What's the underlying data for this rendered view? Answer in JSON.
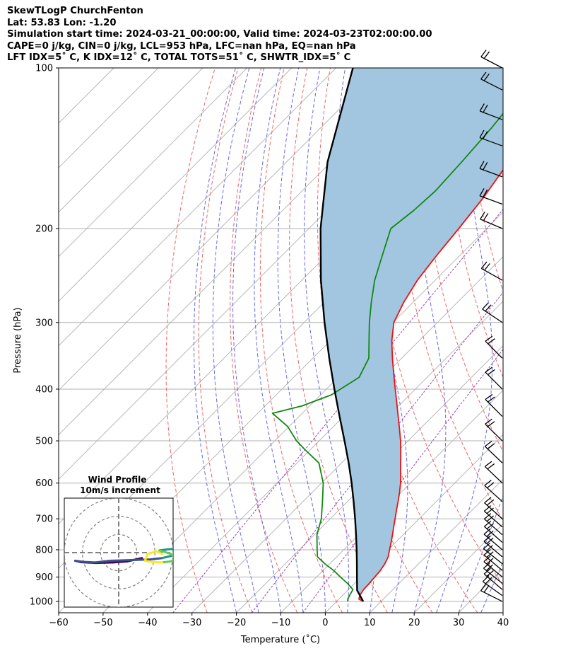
{
  "chart_data": {
    "type": "line",
    "title_lines": [
      "SkewTLogP ChurchFenton",
      "Lat: 53.83   Lon: -1.20",
      "Simulation start time: 2024-03-21_00:00:00, Valid time: 2024-03-23T02:00:00.00",
      "CAPE=0 j/kg, CIN=0 j/kg, LCL=953 hPa, LFC=nan hPa, EQ=nan hPa",
      "LFT IDX=5˚ C, K IDX=12˚ C, TOTAL TOTS=51˚ C, SHWTR_IDX=5˚ C"
    ],
    "xlabel": "Temperature (˚C)",
    "ylabel": "Pressure (hPa)",
    "xlim": [
      -60,
      40
    ],
    "ylim": [
      1050,
      100
    ],
    "yscale": "log",
    "skew": 45,
    "x_ticks": [
      "−60",
      "−50",
      "−40",
      "−30",
      "−20",
      "−10",
      "0",
      "10",
      "20",
      "30",
      "40"
    ],
    "x_tick_values": [
      -60,
      -50,
      -40,
      -30,
      -20,
      -10,
      0,
      10,
      20,
      30,
      40
    ],
    "y_ticks": [
      "1000",
      "900",
      "800",
      "700",
      "600",
      "500",
      "400",
      "300",
      "200",
      "100"
    ],
    "y_tick_values": [
      1000,
      900,
      800,
      700,
      600,
      500,
      400,
      300,
      200,
      100
    ],
    "grid": true,
    "series": [
      {
        "role": "temperature",
        "color": "#ee1111",
        "points": [
          [
            1000,
            6.0
          ],
          [
            990,
            4.5
          ],
          [
            975,
            3.9
          ],
          [
            950,
            3.4
          ],
          [
            925,
            3.3
          ],
          [
            900,
            3.1
          ],
          [
            875,
            2.9
          ],
          [
            850,
            2.4
          ],
          [
            825,
            1.6
          ],
          [
            800,
            0.3
          ],
          [
            775,
            -1.0
          ],
          [
            750,
            -2.4
          ],
          [
            725,
            -3.9
          ],
          [
            700,
            -5.4
          ],
          [
            675,
            -7.0
          ],
          [
            650,
            -8.6
          ],
          [
            625,
            -10.3
          ],
          [
            600,
            -12.2
          ],
          [
            575,
            -14.4
          ],
          [
            550,
            -16.7
          ],
          [
            525,
            -19.1
          ],
          [
            500,
            -21.7
          ],
          [
            475,
            -24.6
          ],
          [
            450,
            -27.7
          ],
          [
            425,
            -31.0
          ],
          [
            400,
            -34.5
          ],
          [
            375,
            -38.2
          ],
          [
            350,
            -42.1
          ],
          [
            325,
            -46.1
          ],
          [
            300,
            -49.8
          ],
          [
            275,
            -52.1
          ],
          [
            250,
            -54.0
          ],
          [
            225,
            -55.2
          ],
          [
            200,
            -56.3
          ],
          [
            175,
            -57.7
          ],
          [
            150,
            -60.0
          ],
          [
            125,
            -63.7
          ],
          [
            110,
            -65.6
          ],
          [
            100,
            -67.0
          ]
        ]
      },
      {
        "role": "dewpoint",
        "color": "#118811",
        "points": [
          [
            1000,
            2.5
          ],
          [
            990,
            2.0
          ],
          [
            975,
            1.6
          ],
          [
            950,
            1.0
          ],
          [
            925,
            -1.6
          ],
          [
            900,
            -4.6
          ],
          [
            875,
            -7.6
          ],
          [
            850,
            -11.1
          ],
          [
            825,
            -14.3
          ],
          [
            800,
            -16.0
          ],
          [
            750,
            -19.4
          ],
          [
            700,
            -22.0
          ],
          [
            650,
            -25.6
          ],
          [
            600,
            -29.6
          ],
          [
            550,
            -35.1
          ],
          [
            520,
            -41.1
          ],
          [
            500,
            -45.1
          ],
          [
            470,
            -50.3
          ],
          [
            444,
            -56.7
          ],
          [
            430,
            -51.7
          ],
          [
            410,
            -47.6
          ],
          [
            380,
            -45.3
          ],
          [
            350,
            -47.4
          ],
          [
            320,
            -52.0
          ],
          [
            300,
            -55.3
          ],
          [
            275,
            -59.4
          ],
          [
            250,
            -63.6
          ],
          [
            225,
            -67.4
          ],
          [
            200,
            -71.6
          ],
          [
            185,
            -70.5
          ],
          [
            170,
            -70.0
          ],
          [
            150,
            -70.6
          ],
          [
            130,
            -71.5
          ],
          [
            115,
            -72.7
          ],
          [
            100,
            -74.0
          ]
        ]
      },
      {
        "role": "parcel",
        "color": "#000000",
        "points": [
          [
            1000,
            6.0
          ],
          [
            953,
            2.1
          ],
          [
            900,
            -0.9
          ],
          [
            850,
            -3.9
          ],
          [
            800,
            -7.1
          ],
          [
            750,
            -10.6
          ],
          [
            700,
            -14.4
          ],
          [
            650,
            -18.6
          ],
          [
            600,
            -23.2
          ],
          [
            550,
            -28.4
          ],
          [
            500,
            -34.3
          ],
          [
            450,
            -40.9
          ],
          [
            400,
            -48.2
          ],
          [
            350,
            -56.3
          ],
          [
            300,
            -65.4
          ],
          [
            250,
            -75.7
          ],
          [
            200,
            -87.4
          ],
          [
            150,
            -100.8
          ],
          [
            100,
            -116.2
          ]
        ]
      }
    ],
    "wind_barbs": [
      {
        "p": 1000,
        "u": 4.0,
        "v": -2.0
      },
      {
        "p": 975,
        "u": 3.5,
        "v": -2.5
      },
      {
        "p": 950,
        "u": 3.5,
        "v": -3.0
      },
      {
        "p": 925,
        "u": 4.0,
        "v": -3.2
      },
      {
        "p": 900,
        "u": 4.2,
        "v": -3.5
      },
      {
        "p": 875,
        "u": 4.5,
        "v": -3.8
      },
      {
        "p": 850,
        "u": 5.0,
        "v": -4.0
      },
      {
        "p": 825,
        "u": 5.0,
        "v": -4.2
      },
      {
        "p": 800,
        "u": 5.2,
        "v": -4.4
      },
      {
        "p": 775,
        "u": 5.0,
        "v": -4.4
      },
      {
        "p": 750,
        "u": 4.8,
        "v": -4.2
      },
      {
        "p": 725,
        "u": 4.6,
        "v": -4.0
      },
      {
        "p": 700,
        "u": 4.5,
        "v": -4.0
      },
      {
        "p": 650,
        "u": 4.2,
        "v": -3.8
      },
      {
        "p": 600,
        "u": 4.0,
        "v": -3.8
      },
      {
        "p": 550,
        "u": 4.0,
        "v": -3.8
      },
      {
        "p": 500,
        "u": 4.0,
        "v": -3.9
      },
      {
        "p": 450,
        "u": 4.0,
        "v": -4.0
      },
      {
        "p": 400,
        "u": 4.0,
        "v": -4.0
      },
      {
        "p": 350,
        "u": 4.0,
        "v": -4.0
      },
      {
        "p": 300,
        "u": 4.5,
        "v": -3.0
      },
      {
        "p": 250,
        "u": 5.0,
        "v": -2.8
      },
      {
        "p": 200,
        "u": 5.2,
        "v": -2.2
      },
      {
        "p": 180,
        "u": 5.5,
        "v": -2.0
      },
      {
        "p": 160,
        "u": 5.5,
        "v": -2.0
      },
      {
        "p": 140,
        "u": 5.5,
        "v": -2.0
      },
      {
        "p": 125,
        "u": 5.8,
        "v": -2.2
      },
      {
        "p": 110,
        "u": 5.5,
        "v": -2.8
      },
      {
        "p": 100,
        "u": 5.8,
        "v": -3.0
      }
    ],
    "inset": {
      "title": "Wind Profile",
      "subtitle": "10m/s increment",
      "rings_ms": [
        10,
        20,
        30
      ],
      "range_ms": 30,
      "hodograph_uv": [
        [
          4.0,
          -2.0
        ],
        [
          3.0,
          -2.5
        ],
        [
          1.5,
          -3.2
        ],
        [
          -1.0,
          -3.6
        ],
        [
          -4.0,
          -3.8
        ],
        [
          -6.5,
          -3.5
        ],
        [
          -7.5,
          -3.0
        ],
        [
          -6.0,
          -3.4
        ],
        [
          -4.0,
          -3.6
        ],
        [
          -2.5,
          -3.2
        ],
        [
          -1.5,
          -3.0
        ],
        [
          5.5,
          -2.5
        ],
        [
          7.5,
          -2.0
        ],
        [
          9.5,
          -1.0
        ],
        [
          10.5,
          0.5
        ],
        [
          10.0,
          1.5
        ],
        [
          8.5,
          1.2
        ],
        [
          7.0,
          0.8
        ],
        [
          8.0,
          0.2
        ],
        [
          9.0,
          -0.5
        ],
        [
          9.5,
          -1.5
        ],
        [
          10.0,
          -2.5
        ],
        [
          9.0,
          -3.2
        ],
        [
          7.5,
          -3.6
        ],
        [
          6.0,
          -3.5
        ],
        [
          4.5,
          -3.0
        ],
        [
          5.0,
          -0.5
        ],
        [
          6.5,
          0.5
        ],
        [
          7.5,
          -0.5
        ]
      ]
    }
  }
}
